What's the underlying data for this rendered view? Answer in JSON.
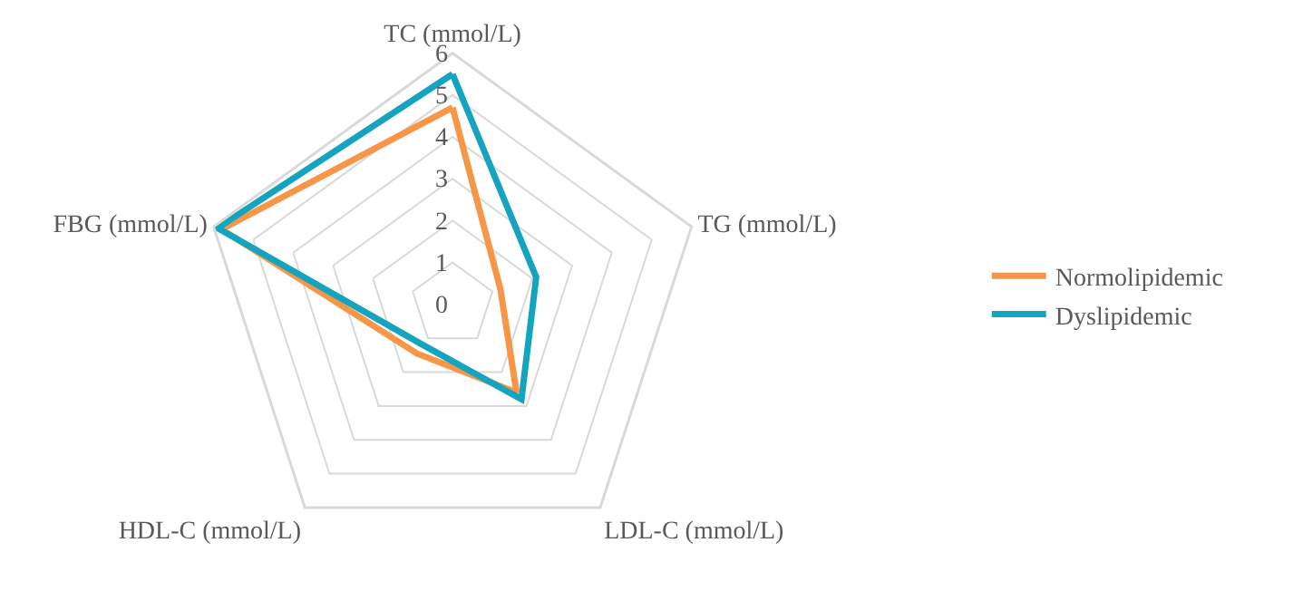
{
  "chart_data": {
    "type": "radar",
    "categories": [
      "TC (mmol/L)",
      "TG (mmol/L)",
      "LDL-C (mmol/L)",
      "HDL-C (mmol/L)",
      "FBG (mmol/L)"
    ],
    "series": [
      {
        "name": "Normolipidemic",
        "color": "#f79646",
        "values": [
          4.7,
          1.2,
          2.6,
          1.45,
          5.8
        ]
      },
      {
        "name": "Dyslipidemic",
        "color": "#14a4bf",
        "values": [
          5.5,
          2.1,
          2.8,
          1.2,
          5.9
        ]
      }
    ],
    "ylim": [
      0,
      6
    ],
    "yticks": [
      0,
      1,
      2,
      3,
      4,
      5,
      6
    ],
    "grid": true,
    "legend": "right",
    "marker": "none",
    "line_style": "solid"
  }
}
